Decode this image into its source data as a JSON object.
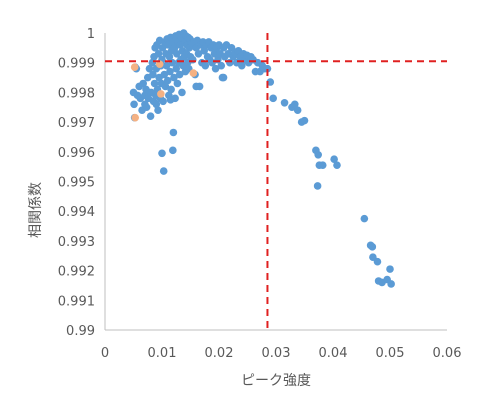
{
  "chart_data": {
    "type": "scatter",
    "xlabel": "ピーク強度",
    "ylabel": "相関係数",
    "xlim": [
      0,
      0.06
    ],
    "ylim": [
      0.99,
      1.0
    ],
    "x_ticks": [
      "0",
      "0.01",
      "0.02",
      "0.03",
      "0.04",
      "0.05",
      "0.06"
    ],
    "y_ticks": [
      "0.99",
      "0.991",
      "0.992",
      "0.993",
      "0.994",
      "0.995",
      "0.996",
      "0.997",
      "0.998",
      "0.999",
      "1"
    ],
    "grid": false,
    "colors": {
      "primary": "#5b9bd5",
      "highlight": "#f4b183",
      "threshold": "#e02020",
      "axis": "#bfbfbf",
      "text": "#595959"
    },
    "thresholds": {
      "x": 0.0285,
      "y": 0.99905
    },
    "series": [
      {
        "color": "#5b9bd5",
        "points": [
          [
            0.005,
            0.998
          ],
          [
            0.0051,
            0.9976
          ],
          [
            0.0052,
            0.99715
          ],
          [
            0.0053,
            0.99885
          ],
          [
            0.0055,
            0.9988
          ],
          [
            0.0057,
            0.9979
          ],
          [
            0.006,
            0.9982
          ],
          [
            0.0062,
            0.9978
          ],
          [
            0.0065,
            0.9974
          ],
          [
            0.0067,
            0.9983
          ],
          [
            0.007,
            0.9979
          ],
          [
            0.0072,
            0.9981
          ],
          [
            0.0073,
            0.9975
          ],
          [
            0.0075,
            0.9985
          ],
          [
            0.0076,
            0.9978
          ],
          [
            0.0078,
            0.9988
          ],
          [
            0.008,
            0.9972
          ],
          [
            0.0081,
            0.998
          ],
          [
            0.0083,
            0.999
          ],
          [
            0.0084,
            0.9986
          ],
          [
            0.0085,
            0.9977
          ],
          [
            0.0086,
            0.9992
          ],
          [
            0.0087,
            0.9983
          ],
          [
            0.0088,
            0.9995
          ],
          [
            0.0089,
            0.9979
          ],
          [
            0.009,
            0.9988
          ],
          [
            0.0091,
            0.9996
          ],
          [
            0.0092,
            0.9981
          ],
          [
            0.0093,
            0.9974
          ],
          [
            0.0094,
            0.9993
          ],
          [
            0.0095,
            0.9985
          ],
          [
            0.0096,
            0.99975
          ],
          [
            0.0097,
            0.9978
          ],
          [
            0.0098,
            0.9989
          ],
          [
            0.0099,
            0.9983
          ],
          [
            0.01,
            0.9991
          ],
          [
            0.01,
            0.99595
          ],
          [
            0.0101,
            0.9995
          ],
          [
            0.0102,
            0.9977
          ],
          [
            0.0103,
            0.99535
          ],
          [
            0.0104,
            0.9986
          ],
          [
            0.0105,
            0.9997
          ],
          [
            0.0106,
            0.9982
          ],
          [
            0.0107,
            0.9993
          ],
          [
            0.0108,
            0.9989
          ],
          [
            0.0109,
            0.9998
          ],
          [
            0.011,
            0.9984
          ],
          [
            0.0111,
            0.9996
          ],
          [
            0.0112,
            0.9979
          ],
          [
            0.0113,
            0.9992
          ],
          [
            0.0114,
            0.9987
          ],
          [
            0.0115,
            0.99985
          ],
          [
            0.0116,
            0.9981
          ],
          [
            0.0117,
            0.9994
          ],
          [
            0.0118,
            0.999
          ],
          [
            0.0119,
            0.99605
          ],
          [
            0.012,
            0.9997
          ],
          [
            0.012,
            0.99665
          ],
          [
            0.0121,
            0.9985
          ],
          [
            0.0122,
            0.9995
          ],
          [
            0.0123,
            0.9978
          ],
          [
            0.0124,
            0.9999
          ],
          [
            0.0125,
            0.9988
          ],
          [
            0.0126,
            0.9993
          ],
          [
            0.0127,
            0.9983
          ],
          [
            0.0128,
            0.9997
          ],
          [
            0.0129,
            0.999
          ],
          [
            0.013,
            0.99995
          ],
          [
            0.0131,
            0.9986
          ],
          [
            0.0132,
            0.9996
          ],
          [
            0.0133,
            0.9991
          ],
          [
            0.0134,
            0.99985
          ],
          [
            0.0135,
            0.998
          ],
          [
            0.0136,
            0.9994
          ],
          [
            0.0137,
            0.9989
          ],
          [
            0.0138,
            1.0
          ],
          [
            0.0139,
            0.9992
          ],
          [
            0.014,
            0.9997
          ],
          [
            0.0141,
            0.9987
          ],
          [
            0.0142,
            0.9999
          ],
          [
            0.0143,
            0.9993
          ],
          [
            0.0144,
            0.9996
          ],
          [
            0.0145,
            0.999
          ],
          [
            0.0146,
            0.99985
          ],
          [
            0.0147,
            0.9988
          ],
          [
            0.0148,
            0.9995
          ],
          [
            0.0149,
            0.9998
          ],
          [
            0.015,
            0.9992
          ],
          [
            0.0152,
            0.99965
          ],
          [
            0.0154,
            0.9991
          ],
          [
            0.0156,
            0.9997
          ],
          [
            0.0158,
            0.9986
          ],
          [
            0.016,
            0.9995
          ],
          [
            0.0162,
            0.99975
          ],
          [
            0.0164,
            0.9993
          ],
          [
            0.0166,
            0.9982
          ],
          [
            0.0168,
            0.9996
          ],
          [
            0.017,
            0.999
          ],
          [
            0.0172,
            0.9997
          ],
          [
            0.0174,
            0.9994
          ],
          [
            0.0176,
            0.9989
          ],
          [
            0.0178,
            0.9996
          ],
          [
            0.018,
            0.9992
          ],
          [
            0.0182,
            0.9997
          ],
          [
            0.0184,
            0.9991
          ],
          [
            0.0186,
            0.9995
          ],
          [
            0.0188,
            0.999
          ],
          [
            0.019,
            0.9996
          ],
          [
            0.0192,
            0.9993
          ],
          [
            0.0194,
            0.9988
          ],
          [
            0.0196,
            0.9995
          ],
          [
            0.0198,
            0.9991
          ],
          [
            0.02,
            0.9996
          ],
          [
            0.0202,
            0.9993
          ],
          [
            0.0204,
            0.9989
          ],
          [
            0.0206,
            0.9985
          ],
          [
            0.0208,
            0.9995
          ],
          [
            0.021,
            0.9992
          ],
          [
            0.0213,
            0.9996
          ],
          [
            0.0216,
            0.9993
          ],
          [
            0.0219,
            0.999
          ],
          [
            0.0222,
            0.9995
          ],
          [
            0.0225,
            0.9992
          ],
          [
            0.0228,
            0.99935
          ],
          [
            0.0231,
            0.999
          ],
          [
            0.0234,
            0.9994
          ],
          [
            0.0237,
            0.9992
          ],
          [
            0.024,
            0.9989
          ],
          [
            0.0243,
            0.9993
          ],
          [
            0.0246,
            0.9991
          ],
          [
            0.0249,
            0.99925
          ],
          [
            0.0252,
            0.999
          ],
          [
            0.0256,
            0.9992
          ],
          [
            0.026,
            0.9991
          ],
          [
            0.0264,
            0.9987
          ],
          [
            0.0268,
            0.999
          ],
          [
            0.0272,
            0.9987
          ],
          [
            0.0276,
            0.9989
          ],
          [
            0.028,
            0.9988
          ],
          [
            0.0285,
            0.9988
          ],
          [
            0.029,
            0.99835
          ],
          [
            0.0295,
            0.9978
          ],
          [
            0.0315,
            0.99765
          ],
          [
            0.0328,
            0.9975
          ],
          [
            0.0333,
            0.9976
          ],
          [
            0.0338,
            0.9974
          ],
          [
            0.0345,
            0.997
          ],
          [
            0.035,
            0.99705
          ],
          [
            0.037,
            0.99605
          ],
          [
            0.0374,
            0.9959
          ],
          [
            0.0376,
            0.99555
          ],
          [
            0.0382,
            0.99555
          ],
          [
            0.0373,
            0.99485
          ],
          [
            0.0402,
            0.99575
          ],
          [
            0.0407,
            0.99555
          ],
          [
            0.0455,
            0.99375
          ],
          [
            0.0466,
            0.99285
          ],
          [
            0.0469,
            0.9928
          ],
          [
            0.047,
            0.99245
          ],
          [
            0.0478,
            0.9923
          ],
          [
            0.048,
            0.99165
          ],
          [
            0.0486,
            0.9916
          ],
          [
            0.0495,
            0.9917
          ],
          [
            0.05,
            0.99205
          ],
          [
            0.0502,
            0.99155
          ],
          [
            0.0208,
            0.9985
          ],
          [
            0.016,
            0.9982
          ],
          [
            0.009,
            0.9976
          ],
          [
            0.0115,
            0.99775
          ],
          [
            0.007,
            0.9976
          ]
        ]
      },
      {
        "color": "#f4b183",
        "points": [
          [
            0.0052,
            0.99885
          ],
          [
            0.0053,
            0.99715
          ],
          [
            0.0096,
            0.99895
          ],
          [
            0.0098,
            0.99795
          ],
          [
            0.0155,
            0.99865
          ]
        ]
      }
    ]
  }
}
